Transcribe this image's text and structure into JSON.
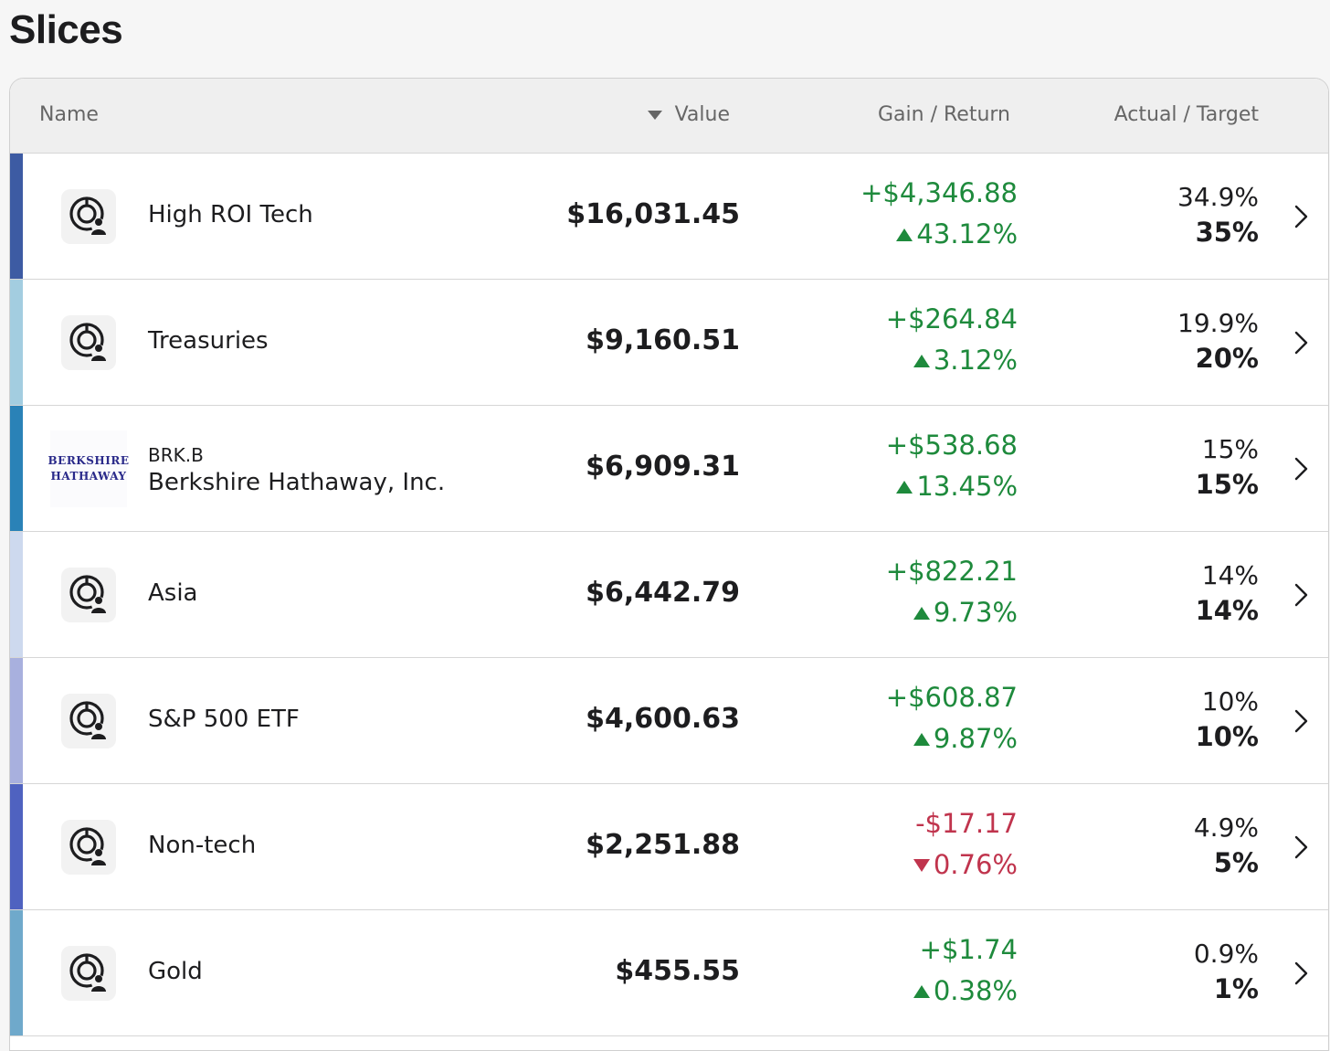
{
  "page": {
    "title": "Slices"
  },
  "header": {
    "name": "Name",
    "value": "Value",
    "gain": "Gain / Return",
    "target": "Actual / Target"
  },
  "rows": [
    {
      "color": "#3d5ba3",
      "icon": "pie-user-icon",
      "name": "High ROI Tech",
      "value": "$16,031.45",
      "gain": "+$4,346.88",
      "ret": "43.12%",
      "dir": "up",
      "actual": "34.9%",
      "target": "35%"
    },
    {
      "color": "#a3cde0",
      "icon": "pie-user-icon",
      "name": "Treasuries",
      "value": "$9,160.51",
      "gain": "+$264.84",
      "ret": "3.12%",
      "dir": "up",
      "actual": "19.9%",
      "target": "20%"
    },
    {
      "color": "#2a82b7",
      "icon": "berkshire-logo",
      "logo_line1": "BERKSHIRE",
      "logo_line2": "HATHAWAY",
      "ticker": "BRK.B",
      "name": "Berkshire Hathaway, Inc.",
      "value": "$6,909.31",
      "gain": "+$538.68",
      "ret": "13.45%",
      "dir": "up",
      "actual": "15%",
      "target": "15%"
    },
    {
      "color": "#cdd9ee",
      "icon": "pie-user-icon",
      "name": "Asia",
      "value": "$6,442.79",
      "gain": "+$822.21",
      "ret": "9.73%",
      "dir": "up",
      "actual": "14%",
      "target": "14%"
    },
    {
      "color": "#a8b0de",
      "icon": "pie-user-icon",
      "name": "S&P 500 ETF",
      "value": "$4,600.63",
      "gain": "+$608.87",
      "ret": "9.87%",
      "dir": "up",
      "actual": "10%",
      "target": "10%"
    },
    {
      "color": "#4f62c0",
      "icon": "pie-user-icon",
      "name": "Non-tech",
      "value": "$2,251.88",
      "gain": "-$17.17",
      "ret": "0.76%",
      "dir": "down",
      "actual": "4.9%",
      "target": "5%"
    },
    {
      "color": "#6fa9cb",
      "icon": "pie-user-icon",
      "name": "Gold",
      "value": "$455.55",
      "gain": "+$1.74",
      "ret": "0.38%",
      "dir": "up",
      "actual": "0.9%",
      "target": "1%"
    }
  ]
}
